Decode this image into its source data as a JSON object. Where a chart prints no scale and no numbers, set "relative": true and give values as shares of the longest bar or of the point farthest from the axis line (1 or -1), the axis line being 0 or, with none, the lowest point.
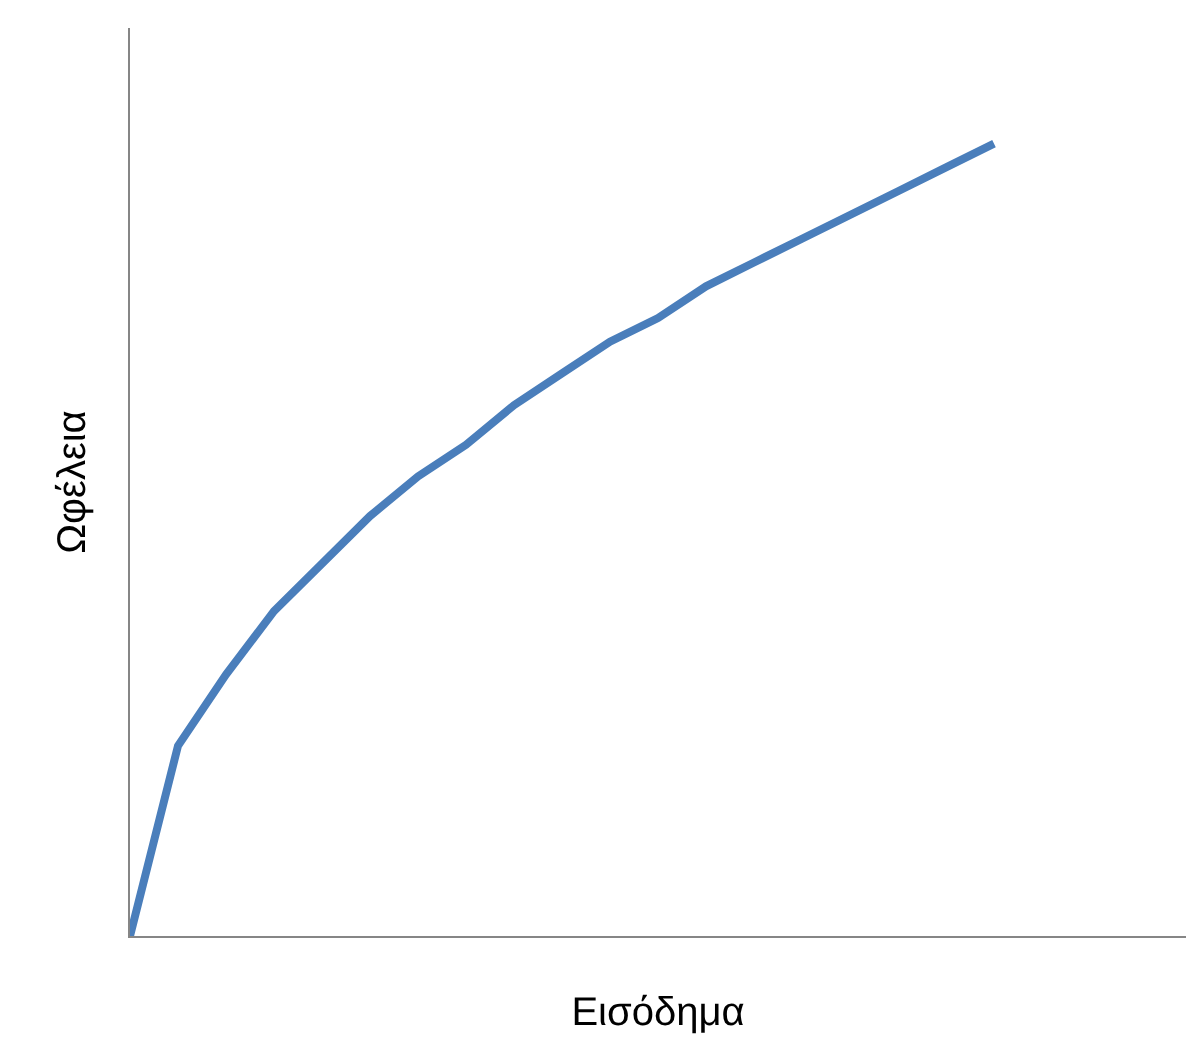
{
  "chart_data": {
    "type": "line",
    "relative": true,
    "xlabel": "Εισόδημα",
    "ylabel": "Ωφέλεια",
    "categories": [
      null,
      null,
      null,
      null,
      null,
      null,
      null,
      null,
      null,
      null,
      null,
      null,
      null,
      null,
      null,
      null,
      null,
      null,
      null,
      null,
      null,
      null,
      null
    ],
    "series": [
      {
        "color": "#4a7ebb",
        "values": [
          0,
          0.24,
          0.33,
          0.41,
          0.47,
          0.53,
          0.58,
          0.62,
          0.67,
          0.71,
          0.75,
          0.78,
          0.82,
          0.85,
          0.88,
          0.91,
          0.94,
          0.97,
          1.0,
          null,
          null,
          null,
          null
        ]
      }
    ],
    "marker": "none",
    "line_style": "solid"
  }
}
